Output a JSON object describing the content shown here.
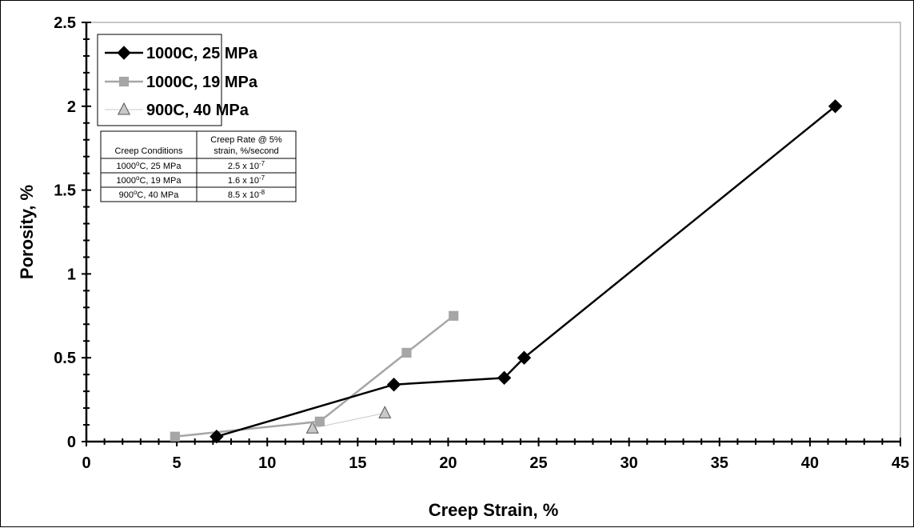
{
  "chart_data": {
    "type": "line",
    "xlabel": "Creep Strain, %",
    "ylabel": "Porosity, %",
    "xlim": [
      0,
      45
    ],
    "ylim": [
      0,
      2.5
    ],
    "x_ticks": [
      "0",
      "5",
      "10",
      "15",
      "20",
      "25",
      "30",
      "35",
      "40",
      "45"
    ],
    "y_ticks": [
      "0",
      "0.5",
      "1",
      "1.5",
      "2",
      "2.5"
    ],
    "grid": false,
    "legend_position": "top-left",
    "series": [
      {
        "name": "1000C, 25 MPa",
        "marker": "diamond",
        "color": "#000000",
        "points": [
          [
            7.2,
            0.03
          ],
          [
            17.0,
            0.34
          ],
          [
            23.1,
            0.38
          ],
          [
            24.2,
            0.5
          ],
          [
            41.4,
            2.0
          ]
        ]
      },
      {
        "name": "1000C, 19 MPa",
        "marker": "square",
        "color": "#a6a6a6",
        "points": [
          [
            4.9,
            0.03
          ],
          [
            12.9,
            0.12
          ],
          [
            17.7,
            0.53
          ],
          [
            20.3,
            0.75
          ]
        ]
      },
      {
        "name": "900C, 40 MPa",
        "marker": "triangle",
        "color": "#c8c8c8",
        "points": [
          [
            12.5,
            0.08
          ],
          [
            16.5,
            0.17
          ]
        ]
      }
    ],
    "inset_table": {
      "headers": [
        {
          "main": "Creep Conditions"
        },
        {
          "line1": "Creep Rate @ 5%",
          "line2": "strain, %/second"
        }
      ],
      "rows": [
        [
          {
            "pre": "1000",
            "sup": "o",
            "post": "C, 25 MPa"
          },
          {
            "pre": "2.5 x 10",
            "sup": "-7",
            "post": ""
          }
        ],
        [
          {
            "pre": "1000",
            "sup": "o",
            "post": "C, 19 MPa"
          },
          {
            "pre": "1.6 x 10",
            "sup": "-7",
            "post": ""
          }
        ],
        [
          {
            "pre": "900",
            "sup": "o",
            "post": "C, 40 MPa"
          },
          {
            "pre": "8.5 x 10",
            "sup": "-8",
            "post": ""
          }
        ]
      ]
    }
  }
}
